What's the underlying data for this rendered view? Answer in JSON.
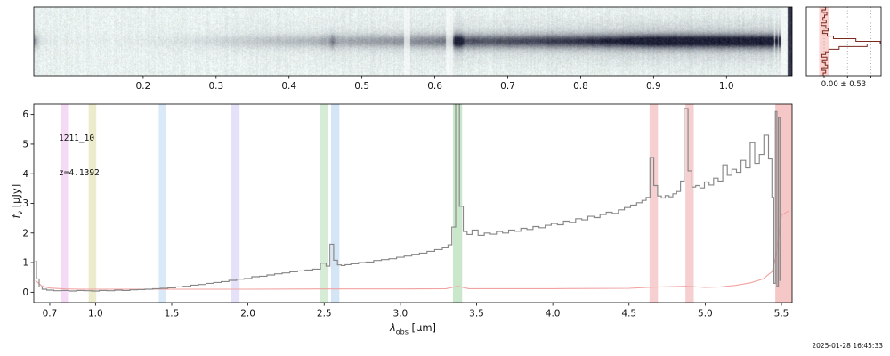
{
  "annotation": {
    "source_id": "1211_10",
    "redshift_label": "z=4.1392"
  },
  "stats_label": "0.00 ± 0.53",
  "timestamp": "2025-01-28 16:45:33",
  "xlabel": {
    "symbol": "λ",
    "sub": "obs",
    "unit": " [μm]"
  },
  "ylabel": {
    "symbol": "f",
    "sub": "ν",
    "unit": " [μJy]"
  },
  "colors": {
    "spectrum": "#878787",
    "uncertainty": "#f2a2a2",
    "histogram_line": "#7b2a1e",
    "histogram_band": "#fbd3d0",
    "heatmap_background": "#e9f1ef",
    "heatmap_trace": "#1e2136",
    "axis": "#000000"
  },
  "chart_data": [
    {
      "type": "heatmap",
      "title": "2D spectrum cutout",
      "xlim": [
        0.05,
        1.09
      ],
      "x_ticks": [
        0.2,
        0.3,
        0.4,
        0.5,
        0.6,
        0.7,
        0.8,
        0.9,
        1.0
      ],
      "x_tick_labels": [
        "0.2",
        "0.3",
        "0.4",
        "0.5",
        "0.6",
        "0.7",
        "0.8",
        "0.9",
        "1.0"
      ],
      "colormap": "light teal background with dark navy trace",
      "trace_note": "horizontal trace brightness follows 1D spectrum flux; strong knots at the emission lines and a dark artifact column at the right edge"
    },
    {
      "type": "line",
      "title": "spatial profile / pixel histogram",
      "orientation": "vertical",
      "stats": "0.00 ± 0.53",
      "sigma": 0.53,
      "xlim": [
        -1.9,
        6.1
      ],
      "gridline_values": [
        0,
        2.5,
        5
      ],
      "values": [
        0.15,
        -0.2,
        0.3,
        0.05,
        -0.12,
        0.22,
        -0.3,
        0.18,
        0.42,
        -0.15,
        0.33,
        1.0,
        3.4,
        6.0,
        4.6,
        1.6,
        0.5,
        0.15,
        -0.25,
        0.3,
        -0.18,
        0.12,
        0.36,
        -0.22,
        0.16,
        -0.1
      ]
    },
    {
      "type": "line",
      "xlabel": "λ_obs [μm]",
      "ylabel": "f_ν [μJy]",
      "xlim": [
        0.595,
        5.57
      ],
      "ylim": [
        -0.35,
        6.35
      ],
      "x_ticks": [
        0.7,
        1.0,
        1.5,
        2.0,
        2.5,
        3.0,
        3.5,
        4.0,
        4.5,
        5.0,
        5.5
      ],
      "x_tick_labels": [
        "0.7",
        "1.0",
        "1.5",
        "2.0",
        "2.5",
        "3.0",
        "3.5",
        "4.0",
        "4.5",
        "5.0",
        "5.5"
      ],
      "y_ticks": [
        0,
        1,
        2,
        3,
        4,
        5,
        6
      ],
      "y_tick_labels": [
        "0",
        "1",
        "2",
        "3",
        "4",
        "5",
        "6"
      ],
      "series": [
        {
          "name": "spectrum",
          "color": "#878787",
          "style": "steps-mid",
          "x": [
            0.605,
            0.62,
            0.64,
            0.66,
            0.7,
            0.75,
            0.8,
            0.85,
            0.9,
            0.95,
            1.0,
            1.05,
            1.1,
            1.15,
            1.2,
            1.25,
            1.3,
            1.35,
            1.4,
            1.45,
            1.5,
            1.55,
            1.6,
            1.65,
            1.7,
            1.75,
            1.8,
            1.85,
            1.9,
            1.95,
            2.0,
            2.05,
            2.1,
            2.15,
            2.2,
            2.25,
            2.3,
            2.35,
            2.4,
            2.45,
            2.5,
            2.525,
            2.55,
            2.575,
            2.6,
            2.625,
            2.65,
            2.7,
            2.75,
            2.8,
            2.85,
            2.9,
            2.95,
            3.0,
            3.05,
            3.1,
            3.15,
            3.2,
            3.25,
            3.3,
            3.325,
            3.35,
            3.375,
            3.4,
            3.425,
            3.45,
            3.49,
            3.53,
            3.57,
            3.61,
            3.65,
            3.69,
            3.73,
            3.77,
            3.81,
            3.85,
            3.89,
            3.93,
            3.97,
            4.01,
            4.05,
            4.09,
            4.13,
            4.17,
            4.21,
            4.25,
            4.29,
            4.33,
            4.37,
            4.41,
            4.45,
            4.49,
            4.53,
            4.57,
            4.6,
            4.625,
            4.65,
            4.675,
            4.7,
            4.725,
            4.75,
            4.775,
            4.8,
            4.825,
            4.85,
            4.875,
            4.9,
            4.925,
            4.95,
            4.98,
            5.01,
            5.04,
            5.07,
            5.1,
            5.13,
            5.16,
            5.19,
            5.22,
            5.25,
            5.28,
            5.31,
            5.34,
            5.37,
            5.4,
            5.43,
            5.445,
            5.455,
            5.465,
            5.475,
            5.485,
            5.495
          ],
          "y": [
            1.05,
            0.45,
            0.18,
            0.1,
            0.07,
            0.05,
            0.06,
            0.04,
            0.06,
            0.05,
            0.04,
            0.06,
            0.05,
            0.07,
            0.06,
            0.08,
            0.09,
            0.1,
            0.12,
            0.13,
            0.15,
            0.18,
            0.2,
            0.24,
            0.26,
            0.3,
            0.33,
            0.36,
            0.4,
            0.44,
            0.46,
            0.52,
            0.54,
            0.58,
            0.62,
            0.65,
            0.69,
            0.72,
            0.75,
            0.78,
            0.98,
            0.88,
            1.62,
            1.08,
            0.92,
            0.9,
            0.93,
            0.96,
            1.0,
            1.02,
            1.07,
            1.1,
            1.13,
            1.18,
            1.22,
            1.28,
            1.32,
            1.38,
            1.44,
            1.5,
            1.6,
            2.2,
            7.0,
            2.9,
            2.05,
            1.95,
            2.1,
            1.92,
            2.0,
            1.96,
            2.05,
            2.0,
            2.1,
            2.06,
            2.16,
            2.12,
            2.22,
            2.18,
            2.26,
            2.32,
            2.28,
            2.4,
            2.36,
            2.48,
            2.44,
            2.56,
            2.52,
            2.62,
            2.7,
            2.66,
            2.78,
            2.86,
            2.94,
            3.02,
            3.1,
            3.2,
            4.55,
            3.6,
            3.25,
            3.18,
            3.26,
            3.22,
            3.32,
            3.4,
            3.75,
            6.2,
            4.1,
            3.55,
            3.6,
            3.52,
            3.72,
            3.62,
            3.85,
            3.75,
            4.3,
            3.95,
            4.15,
            4.05,
            4.45,
            4.2,
            5.05,
            4.35,
            4.65,
            5.3,
            4.5,
            3.2,
            0.3,
            6.1,
            0.2,
            5.9,
            0.4
          ]
        },
        {
          "name": "uncertainty",
          "color": "#f2a2a2",
          "style": "line",
          "x": [
            0.605,
            0.65,
            0.7,
            0.8,
            0.9,
            1.0,
            1.2,
            1.5,
            2.0,
            2.5,
            3.0,
            3.3,
            3.375,
            3.45,
            4.0,
            4.5,
            4.65,
            4.875,
            5.0,
            5.1,
            5.2,
            5.3,
            5.38,
            5.44,
            5.47,
            5.5,
            5.55
          ],
          "y": [
            0.4,
            0.2,
            0.14,
            0.11,
            0.1,
            0.1,
            0.1,
            0.1,
            0.1,
            0.11,
            0.11,
            0.12,
            0.2,
            0.12,
            0.12,
            0.13,
            0.17,
            0.2,
            0.16,
            0.18,
            0.23,
            0.32,
            0.45,
            0.7,
            1.4,
            2.6,
            2.75
          ]
        }
      ],
      "bands": [
        {
          "x0": 0.77,
          "x1": 0.82,
          "color": "#cc55cc",
          "alpha": 0.22
        },
        {
          "x0": 0.955,
          "x1": 1.005,
          "color": "#b5b535",
          "alpha": 0.25
        },
        {
          "x0": 1.415,
          "x1": 1.465,
          "color": "#5599dd",
          "alpha": 0.22
        },
        {
          "x0": 1.89,
          "x1": 1.945,
          "color": "#8877dd",
          "alpha": 0.22
        },
        {
          "x0": 2.47,
          "x1": 2.525,
          "color": "#44aa44",
          "alpha": 0.22
        },
        {
          "x0": 2.545,
          "x1": 2.6,
          "color": "#5599dd",
          "alpha": 0.25
        },
        {
          "x0": 3.345,
          "x1": 3.405,
          "color": "#44aa44",
          "alpha": 0.28
        },
        {
          "x0": 4.635,
          "x1": 4.69,
          "color": "#dd4444",
          "alpha": 0.25
        },
        {
          "x0": 4.87,
          "x1": 4.925,
          "color": "#dd4444",
          "alpha": 0.25
        },
        {
          "x0": 5.46,
          "x1": 5.57,
          "color": "#dd4444",
          "alpha": 0.3
        }
      ],
      "annotations": [
        "1211_10",
        "z=4.1392"
      ]
    }
  ]
}
